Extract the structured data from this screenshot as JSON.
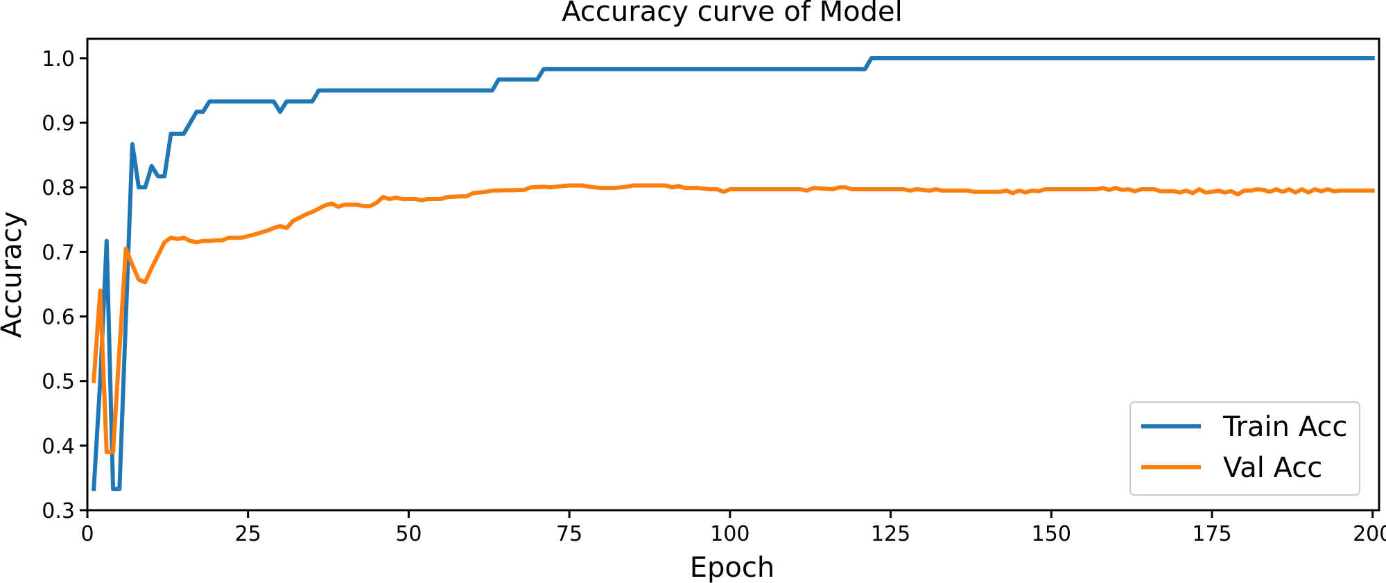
{
  "chart_data": {
    "type": "line",
    "title": "Accuracy curve of Model",
    "xlabel": "Epoch",
    "ylabel": "Accuracy",
    "xlim": [
      0,
      201
    ],
    "ylim": [
      0.3,
      1.03
    ],
    "xticks": [
      0,
      25,
      50,
      75,
      100,
      125,
      150,
      175,
      200
    ],
    "xtick_labels": [
      "0",
      "25",
      "50",
      "75",
      "100",
      "125",
      "150",
      "175",
      "200"
    ],
    "yticks": [
      0.3,
      0.4,
      0.5,
      0.6,
      0.7,
      0.8,
      0.9,
      1.0
    ],
    "ytick_labels": [
      "0.3",
      "0.4",
      "0.5",
      "0.6",
      "0.7",
      "0.8",
      "0.9",
      "1.0"
    ],
    "grid": false,
    "legend_position": "lower-right",
    "colors": {
      "train": "#1f77b4",
      "val": "#ff7f0e",
      "axis": "#000000",
      "legend_border": "#cccccc"
    },
    "series": [
      {
        "name": "Train Acc",
        "color": "#1f77b4",
        "points": [
          [
            1,
            0.333
          ],
          [
            2,
            0.5
          ],
          [
            3,
            0.717
          ],
          [
            4,
            0.333
          ],
          [
            5,
            0.333
          ],
          [
            6,
            0.6
          ],
          [
            7,
            0.867
          ],
          [
            8,
            0.8
          ],
          [
            9,
            0.8
          ],
          [
            10,
            0.833
          ],
          [
            11,
            0.817
          ],
          [
            12,
            0.817
          ],
          [
            13,
            0.883
          ],
          [
            14,
            0.883
          ],
          [
            15,
            0.883
          ],
          [
            16,
            0.9
          ],
          [
            17,
            0.917
          ],
          [
            18,
            0.917
          ],
          [
            19,
            0.933
          ],
          [
            29,
            0.933
          ],
          [
            30,
            0.917
          ],
          [
            31,
            0.933
          ],
          [
            35,
            0.933
          ],
          [
            36,
            0.95
          ],
          [
            63,
            0.95
          ],
          [
            64,
            0.967
          ],
          [
            70,
            0.967
          ],
          [
            71,
            0.983
          ],
          [
            121,
            0.983
          ],
          [
            122,
            1.0
          ],
          [
            200,
            1.0
          ]
        ]
      },
      {
        "name": "Val Acc",
        "color": "#ff7f0e",
        "points": [
          [
            1,
            0.5
          ],
          [
            2,
            0.64
          ],
          [
            3,
            0.39
          ],
          [
            4,
            0.39
          ],
          [
            5,
            0.55
          ],
          [
            6,
            0.705
          ],
          [
            7,
            0.68
          ],
          [
            8,
            0.657
          ],
          [
            9,
            0.653
          ],
          [
            10,
            0.675
          ],
          [
            11,
            0.695
          ],
          [
            12,
            0.715
          ],
          [
            13,
            0.722
          ],
          [
            14,
            0.72
          ],
          [
            15,
            0.722
          ],
          [
            16,
            0.717
          ],
          [
            17,
            0.715
          ],
          [
            18,
            0.717
          ],
          [
            19,
            0.717
          ],
          [
            20,
            0.718
          ],
          [
            21,
            0.718
          ],
          [
            22,
            0.722
          ],
          [
            24,
            0.722
          ],
          [
            26,
            0.727
          ],
          [
            28,
            0.733
          ],
          [
            29,
            0.737
          ],
          [
            30,
            0.74
          ],
          [
            31,
            0.737
          ],
          [
            32,
            0.748
          ],
          [
            33,
            0.753
          ],
          [
            34,
            0.758
          ],
          [
            35,
            0.762
          ],
          [
            36,
            0.767
          ],
          [
            37,
            0.772
          ],
          [
            38,
            0.775
          ],
          [
            39,
            0.77
          ],
          [
            40,
            0.773
          ],
          [
            42,
            0.773
          ],
          [
            43,
            0.771
          ],
          [
            44,
            0.771
          ],
          [
            45,
            0.776
          ],
          [
            46,
            0.785
          ],
          [
            47,
            0.782
          ],
          [
            48,
            0.784
          ],
          [
            49,
            0.782
          ],
          [
            50,
            0.782
          ],
          [
            51,
            0.782
          ],
          [
            52,
            0.78
          ],
          [
            53,
            0.782
          ],
          [
            55,
            0.782
          ],
          [
            56,
            0.785
          ],
          [
            58,
            0.786
          ],
          [
            59,
            0.786
          ],
          [
            60,
            0.791
          ],
          [
            62,
            0.793
          ],
          [
            63,
            0.795
          ],
          [
            68,
            0.796
          ],
          [
            69,
            0.8
          ],
          [
            71,
            0.801
          ],
          [
            72,
            0.8
          ],
          [
            73,
            0.801
          ],
          [
            75,
            0.803
          ],
          [
            77,
            0.803
          ],
          [
            78,
            0.801
          ],
          [
            79,
            0.8
          ],
          [
            80,
            0.799
          ],
          [
            82,
            0.799
          ],
          [
            84,
            0.801
          ],
          [
            85,
            0.803
          ],
          [
            90,
            0.803
          ],
          [
            91,
            0.8
          ],
          [
            92,
            0.802
          ],
          [
            93,
            0.799
          ],
          [
            95,
            0.799
          ],
          [
            97,
            0.797
          ],
          [
            98,
            0.797
          ],
          [
            99,
            0.793
          ],
          [
            100,
            0.797
          ],
          [
            111,
            0.797
          ],
          [
            112,
            0.795
          ],
          [
            113,
            0.799
          ],
          [
            116,
            0.797
          ],
          [
            117,
            0.8
          ],
          [
            118,
            0.8
          ],
          [
            119,
            0.797
          ],
          [
            127,
            0.797
          ],
          [
            128,
            0.795
          ],
          [
            129,
            0.797
          ],
          [
            131,
            0.795
          ],
          [
            132,
            0.797
          ],
          [
            133,
            0.795
          ],
          [
            137,
            0.795
          ],
          [
            138,
            0.793
          ],
          [
            142,
            0.793
          ],
          [
            143,
            0.795
          ],
          [
            144,
            0.791
          ],
          [
            145,
            0.795
          ],
          [
            146,
            0.792
          ],
          [
            147,
            0.795
          ],
          [
            148,
            0.794
          ],
          [
            149,
            0.797
          ],
          [
            157,
            0.797
          ],
          [
            158,
            0.799
          ],
          [
            159,
            0.796
          ],
          [
            160,
            0.799
          ],
          [
            161,
            0.796
          ],
          [
            162,
            0.797
          ],
          [
            163,
            0.794
          ],
          [
            164,
            0.797
          ],
          [
            166,
            0.797
          ],
          [
            167,
            0.794
          ],
          [
            169,
            0.794
          ],
          [
            170,
            0.792
          ],
          [
            171,
            0.795
          ],
          [
            172,
            0.791
          ],
          [
            173,
            0.797
          ],
          [
            174,
            0.792
          ],
          [
            175,
            0.793
          ],
          [
            176,
            0.795
          ],
          [
            177,
            0.792
          ],
          [
            178,
            0.794
          ],
          [
            179,
            0.789
          ],
          [
            180,
            0.795
          ],
          [
            181,
            0.795
          ],
          [
            182,
            0.797
          ],
          [
            183,
            0.796
          ],
          [
            184,
            0.793
          ],
          [
            185,
            0.797
          ],
          [
            186,
            0.793
          ],
          [
            187,
            0.797
          ],
          [
            188,
            0.792
          ],
          [
            189,
            0.797
          ],
          [
            190,
            0.792
          ],
          [
            191,
            0.797
          ],
          [
            192,
            0.794
          ],
          [
            193,
            0.797
          ],
          [
            194,
            0.794
          ],
          [
            195,
            0.795
          ],
          [
            200,
            0.795
          ]
        ]
      }
    ]
  }
}
